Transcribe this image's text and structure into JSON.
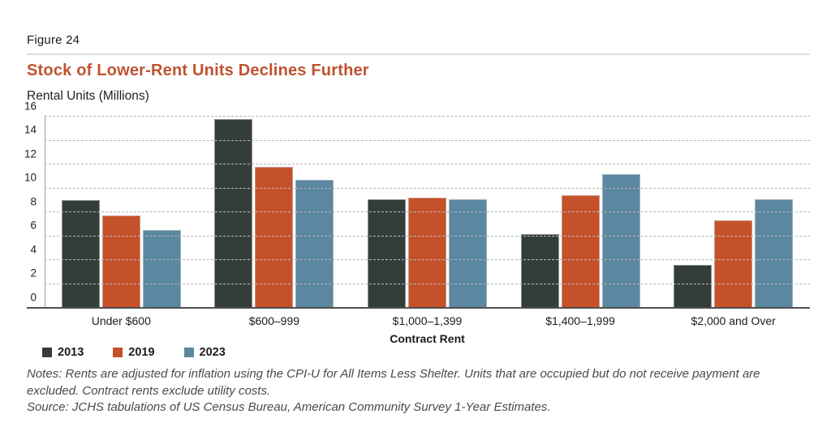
{
  "figure_label": "Figure 24",
  "title": "Stock of Lower-Rent Units Declines Further",
  "notes": "Notes: Rents are adjusted for inflation using the CPI-U for All Items Less Shelter. Units that are occupied but do not receive payment are excluded. Contract rents exclude utility costs.",
  "source": "Source: JCHS tabulations of US Census Bureau, American Community Survey 1-Year Estimates.",
  "colors": {
    "title_accent": "#c0532f",
    "series_2013": "#333e3a",
    "series_2019": "#c5512b",
    "series_2023": "#5b87a0",
    "gridline": "#b8b8b8",
    "divider": "#dcdcdc"
  },
  "chart_data": {
    "type": "bar",
    "title": "Stock of Lower-Rent Units Declines Further",
    "xlabel": "Contract Rent",
    "ylabel": "Rental Units (Millions)",
    "categories": [
      "Under $600",
      "$600–999",
      "$1,000–1,399",
      "$1,400–1,999",
      "$2,000 and Over"
    ],
    "series": [
      {
        "name": "2013",
        "color": "#333e3a",
        "values": [
          9.0,
          15.8,
          9.1,
          6.2,
          3.6
        ]
      },
      {
        "name": "2019",
        "color": "#c5512b",
        "values": [
          7.7,
          11.8,
          9.2,
          9.4,
          7.3
        ]
      },
      {
        "name": "2023",
        "color": "#5b87a0",
        "values": [
          6.5,
          10.7,
          9.1,
          11.2,
          9.1
        ]
      }
    ],
    "ylim": [
      0,
      16
    ],
    "yticks": [
      0,
      2,
      4,
      6,
      8,
      10,
      12,
      14,
      16
    ],
    "grid": "horizontal-dashed",
    "legend_position": "bottom-left"
  }
}
